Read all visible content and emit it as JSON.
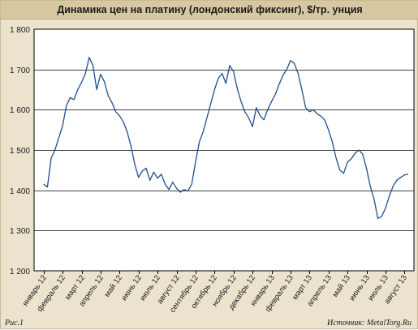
{
  "figure": {
    "caption": "Рис.1",
    "source": "Источник: MetalTorg.Ru"
  },
  "colors": {
    "line": "#1f4e8c",
    "plot_bg": "#ffffff",
    "frame_bg": "#ece3cf",
    "title_bg": "#d8c8a2",
    "grid": "#000000"
  },
  "chart_data": {
    "type": "line",
    "title": "Динамика цен на  платину (лондонский фиксинг), $/тр. унция",
    "xlabel": "",
    "ylabel": "",
    "ylim": [
      1200,
      1800
    ],
    "grid": true,
    "y_ticks": [
      1200,
      1300,
      1400,
      1500,
      1600,
      1700,
      1800
    ],
    "y_tick_labels": [
      "1 200",
      "1 300",
      "1 400",
      "1 500",
      "1 600",
      "1 700",
      "1 800"
    ],
    "categories": [
      "январь 12",
      "февраль 12",
      "март 12",
      "апрель 12",
      "май 12",
      "июнь 12",
      "июль 12",
      "август 12",
      "сентябрь 12",
      "октябрь 12",
      "ноябрь 12",
      "декабрь 12",
      "январь 13",
      "февраль 13",
      "март 13",
      "апрель 13",
      "май 13",
      "июнь 13",
      "июль 13",
      "август 13"
    ],
    "series": [
      {
        "name": "",
        "values": [
          [
            0.0,
            1415
          ],
          [
            0.2,
            1408
          ],
          [
            0.4,
            1480
          ],
          [
            0.6,
            1500
          ],
          [
            0.8,
            1530
          ],
          [
            1.0,
            1560
          ],
          [
            1.2,
            1610
          ],
          [
            1.4,
            1630
          ],
          [
            1.6,
            1625
          ],
          [
            1.8,
            1650
          ],
          [
            2.0,
            1668
          ],
          [
            2.2,
            1690
          ],
          [
            2.4,
            1730
          ],
          [
            2.6,
            1710
          ],
          [
            2.8,
            1650
          ],
          [
            3.0,
            1688
          ],
          [
            3.2,
            1670
          ],
          [
            3.4,
            1635
          ],
          [
            3.6,
            1618
          ],
          [
            3.8,
            1595
          ],
          [
            4.0,
            1585
          ],
          [
            4.2,
            1570
          ],
          [
            4.4,
            1545
          ],
          [
            4.6,
            1510
          ],
          [
            4.8,
            1465
          ],
          [
            5.0,
            1432
          ],
          [
            5.2,
            1448
          ],
          [
            5.4,
            1455
          ],
          [
            5.6,
            1425
          ],
          [
            5.8,
            1445
          ],
          [
            6.0,
            1430
          ],
          [
            6.2,
            1440
          ],
          [
            6.4,
            1415
          ],
          [
            6.6,
            1402
          ],
          [
            6.8,
            1420
          ],
          [
            7.0,
            1405
          ],
          [
            7.2,
            1395
          ],
          [
            7.4,
            1402
          ],
          [
            7.6,
            1398
          ],
          [
            7.8,
            1415
          ],
          [
            8.0,
            1470
          ],
          [
            8.2,
            1520
          ],
          [
            8.4,
            1545
          ],
          [
            8.6,
            1580
          ],
          [
            8.8,
            1615
          ],
          [
            9.0,
            1650
          ],
          [
            9.2,
            1678
          ],
          [
            9.4,
            1690
          ],
          [
            9.6,
            1665
          ],
          [
            9.8,
            1710
          ],
          [
            10.0,
            1695
          ],
          [
            10.2,
            1652
          ],
          [
            10.4,
            1620
          ],
          [
            10.6,
            1595
          ],
          [
            10.8,
            1580
          ],
          [
            11.0,
            1558
          ],
          [
            11.2,
            1605
          ],
          [
            11.4,
            1585
          ],
          [
            11.6,
            1575
          ],
          [
            11.8,
            1600
          ],
          [
            12.0,
            1620
          ],
          [
            12.2,
            1638
          ],
          [
            12.4,
            1663
          ],
          [
            12.6,
            1685
          ],
          [
            12.8,
            1700
          ],
          [
            13.0,
            1722
          ],
          [
            13.2,
            1715
          ],
          [
            13.4,
            1690
          ],
          [
            13.6,
            1650
          ],
          [
            13.8,
            1605
          ],
          [
            14.0,
            1595
          ],
          [
            14.2,
            1600
          ],
          [
            14.4,
            1590
          ],
          [
            14.6,
            1584
          ],
          [
            14.8,
            1575
          ],
          [
            15.0,
            1550
          ],
          [
            15.2,
            1520
          ],
          [
            15.4,
            1480
          ],
          [
            15.6,
            1450
          ],
          [
            15.8,
            1442
          ],
          [
            16.0,
            1470
          ],
          [
            16.2,
            1478
          ],
          [
            16.4,
            1492
          ],
          [
            16.6,
            1500
          ],
          [
            16.8,
            1490
          ],
          [
            17.0,
            1455
          ],
          [
            17.2,
            1410
          ],
          [
            17.4,
            1378
          ],
          [
            17.6,
            1330
          ],
          [
            17.8,
            1335
          ],
          [
            18.0,
            1355
          ],
          [
            18.2,
            1385
          ],
          [
            18.4,
            1410
          ],
          [
            18.6,
            1425
          ],
          [
            18.8,
            1432
          ],
          [
            19.0,
            1438
          ],
          [
            19.2,
            1440
          ]
        ]
      }
    ]
  }
}
